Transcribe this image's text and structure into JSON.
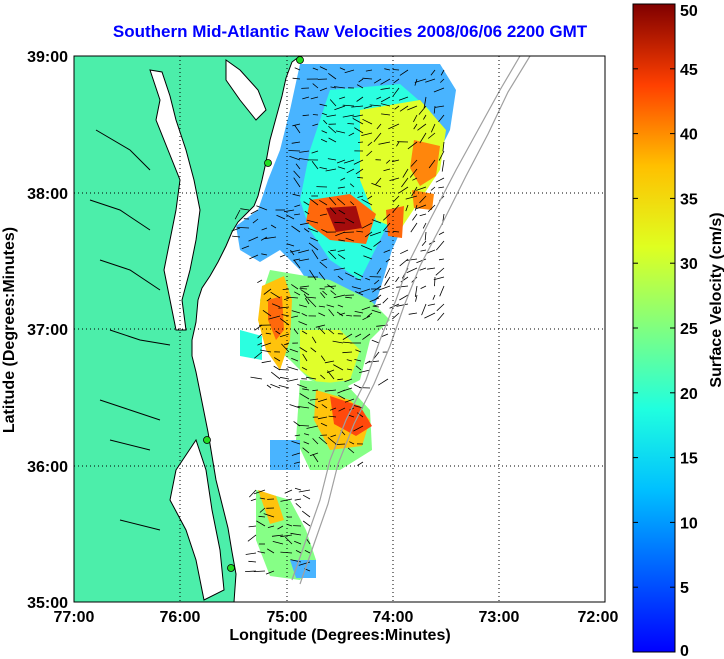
{
  "title": "Southern Mid-Atlantic Raw Velocities 2008/06/06 2200 GMT",
  "x_axis": {
    "label": "Longitude (Degrees:Minutes)",
    "ticks": [
      "77:00",
      "76:00",
      "75:00",
      "74:00",
      "73:00",
      "72:00"
    ]
  },
  "y_axis": {
    "label": "Latitude (Degrees:Minutes)",
    "ticks": [
      "35:00",
      "36:00",
      "37:00",
      "38:00",
      "39:00"
    ]
  },
  "colorbar": {
    "label": "Surface Velocity (cm/s)",
    "ticks": [
      "0",
      "5",
      "10",
      "15",
      "20",
      "25",
      "30",
      "35",
      "40",
      "45",
      "50"
    ],
    "range": [
      0,
      50
    ],
    "colormap": "jet"
  },
  "colors": {
    "land": "#4ceeaa",
    "title": "#0000ff",
    "coastline": "#000000",
    "bathymetry": "#a0a0a0",
    "stations": "#22dd22"
  },
  "map_extent": {
    "lon": [
      -77,
      -72
    ],
    "lat": [
      35,
      39
    ]
  }
}
